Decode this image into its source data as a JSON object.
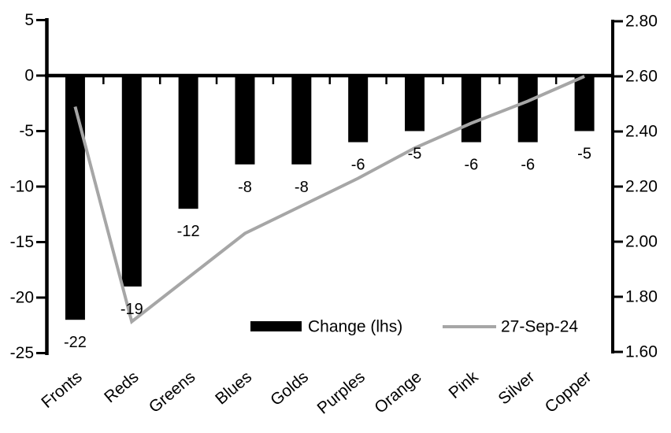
{
  "chart_data": {
    "type": "combo-bar-line",
    "title": "",
    "categories": [
      "Fronts",
      "Reds",
      "Greens",
      "Blues",
      "Golds",
      "Purples",
      "Orange",
      "Pink",
      "Silver",
      "Copper"
    ],
    "series": [
      {
        "name": "Change (lhs)",
        "type": "bar",
        "axis": "left",
        "color": "#000000",
        "values": [
          -22,
          -19,
          -12,
          -8,
          -8,
          -6,
          -5,
          -6,
          -6,
          -5
        ],
        "data_labels": [
          "-22",
          "-19",
          "-12",
          "-8",
          "-8",
          "-6",
          "-5",
          "-6",
          "-6",
          "-5"
        ]
      },
      {
        "name": "27-Sep-24",
        "type": "line",
        "axis": "right",
        "color": "#a6a6a6",
        "values": [
          2.49,
          1.71,
          1.87,
          2.03,
          2.13,
          2.23,
          2.34,
          2.43,
          2.51,
          2.6
        ]
      }
    ],
    "left_axis": {
      "min": -25,
      "max": 5,
      "step": 5,
      "tick_labels": [
        "5",
        "0",
        "-5",
        "-10",
        "-15",
        "-20",
        "-25"
      ]
    },
    "right_axis": {
      "min": 1.6,
      "max": 2.8,
      "step": 0.2,
      "tick_labels": [
        "2.80",
        "2.60",
        "2.40",
        "2.20",
        "2.00",
        "1.80",
        "1.60"
      ]
    },
    "legend": {
      "position": "bottom-inside",
      "entries": [
        {
          "label": "Change (lhs)",
          "swatch": "bar",
          "color": "#000000"
        },
        {
          "label": "27-Sep-24",
          "swatch": "line",
          "color": "#a6a6a6"
        }
      ]
    },
    "grid": false,
    "colors": {
      "axis": "#000000",
      "text": "#000000",
      "background": "#ffffff"
    }
  }
}
